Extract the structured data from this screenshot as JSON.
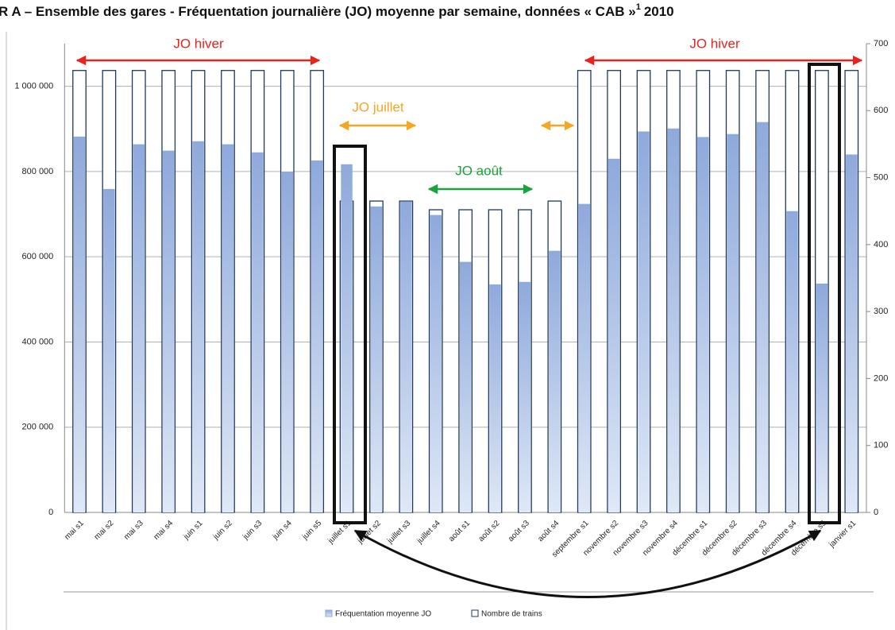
{
  "chart_data": {
    "type": "bar",
    "title": "R A – Ensemble des gares - Fréquentation journalière (JO) moyenne par semaine, données « CAB »",
    "title_footnote": "1",
    "title_year": "2010",
    "categories": [
      "mai s1",
      "mai s2",
      "mai s3",
      "mai s4",
      "juin s1",
      "juin s2",
      "juin s3",
      "juin s4",
      "juin s5",
      "juillet s1",
      "juillet s2",
      "juillet s3",
      "juillet s4",
      "août s1",
      "août s2",
      "août s3",
      "août s4",
      "septembre s1",
      "novembre s2",
      "novembre s3",
      "novembre s4",
      "décembre s1",
      "décembre s2",
      "décembre s3",
      "décembre s4",
      "décembre s5",
      "janvier s1"
    ],
    "series": [
      {
        "name": "Fréquentation moyenne JO",
        "color": "#8eaadb",
        "axis": "y",
        "values": [
          882000,
          759000,
          864000,
          849000,
          871000,
          864000,
          845000,
          800000,
          826000,
          817000,
          718000,
          729000,
          698000,
          588000,
          535000,
          541000,
          614000,
          724000,
          830000,
          894000,
          901000,
          881000,
          888000,
          916000,
          707000,
          537000,
          840000
        ]
      },
      {
        "name": "Nombre de trains",
        "color": "#1f3864",
        "axis": "y2",
        "values": [
          660,
          660,
          660,
          660,
          660,
          660,
          660,
          660,
          660,
          465,
          465,
          465,
          452,
          452,
          452,
          452,
          465,
          660,
          660,
          660,
          660,
          660,
          660,
          660,
          660,
          660,
          660
        ]
      }
    ],
    "ylim": [
      0,
      1100000
    ],
    "yticks": [
      0,
      {
        "value": 200000,
        "label": "200 000"
      },
      {
        "value": 400000,
        "label": "400 000"
      },
      {
        "value": 600000,
        "label": "600 000"
      },
      {
        "value": 800000,
        "label": "800 000"
      },
      {
        "value": 1000000,
        "label": "1 000 000"
      }
    ],
    "y2lim": [
      0,
      700
    ],
    "y2ticks": [
      0,
      100,
      200,
      300,
      400,
      500,
      600,
      700
    ],
    "grid": true,
    "legend": "bottom",
    "annotations": [
      "JO hiver",
      "JO hiver",
      "JO juillet",
      "JO août"
    ]
  }
}
